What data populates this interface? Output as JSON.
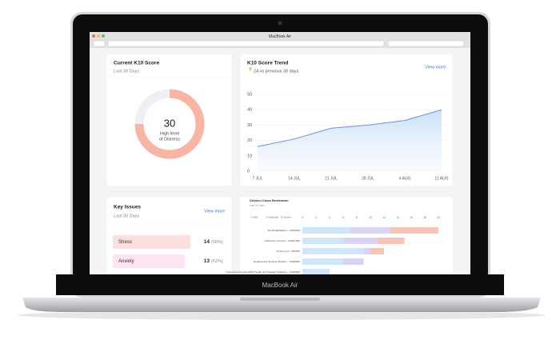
{
  "window": {
    "title": "MacBook Air"
  },
  "device_label": "MacBook Air",
  "score_card": {
    "title": "Current K10 Score",
    "period": "Last 30 Days",
    "score": 30,
    "ring_fill_percent": 75,
    "status_lines": [
      "High level",
      "of Distress"
    ]
  },
  "trend_card": {
    "title": "K10 Score Trend",
    "change": "24 vs previous 30 days",
    "link": "View more",
    "categories": [
      "7 JUL",
      "14 JUL",
      "21 JUL",
      "28 JUL",
      "4 AUG",
      "11 AUG"
    ],
    "values": [
      16,
      21,
      28,
      30,
      33,
      40
    ],
    "ylim": [
      0,
      50
    ],
    "yticks": [
      0,
      10,
      20,
      30,
      40,
      50
    ]
  },
  "issues_card": {
    "title": "Key Issues",
    "period": "Last 30 Days",
    "link": "View more",
    "rows": [
      {
        "label": "Stress",
        "count": 14,
        "share": "(56%)"
      },
      {
        "label": "Anxiety",
        "count": 13,
        "share": "(52%)"
      }
    ]
  },
  "division_card": {
    "title": "Division Cases Breakdown",
    "period": "Last 30 Days",
    "xlim": [
      0,
      20
    ],
    "xticks": [
      0,
      2,
      4,
      6,
      8,
      10,
      12,
      14,
      16,
      18,
      20
    ],
    "categories": [
      "SG Rehabilitation – NA00016",
      "Outcomes Connect – NA007466",
      "Tummy Ltd – N30676",
      "Employment Services Division – NA68034",
      "Outcomes Connect Allied Health and Solution Solutions – NA68909"
    ],
    "series": [
      {
        "name": "Mild",
        "color": "#cfe6fb",
        "values": [
          7,
          6,
          9,
          6,
          4
        ]
      },
      {
        "name": "Moderate",
        "color": "#d9d4f5",
        "values": [
          6,
          5,
          1,
          3,
          0
        ]
      },
      {
        "name": "Severe",
        "color": "#f9c3b6",
        "values": [
          7,
          4,
          2,
          0,
          0
        ]
      }
    ]
  }
}
